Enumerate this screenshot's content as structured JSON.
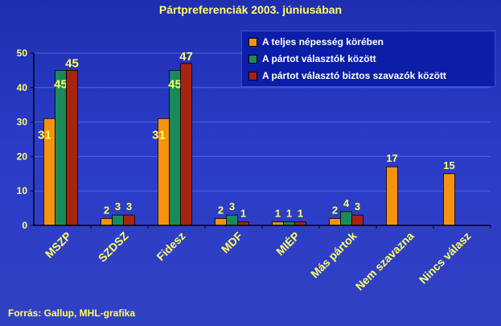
{
  "title": "Pártpreferenciák 2003. júniusában",
  "source": "Forrás: Gallup, MHL-grafika",
  "colors": {
    "background": "#2a3cc8",
    "text": "#ffff66",
    "legend_background": "#0c1ea8",
    "axis": "#000000"
  },
  "chart_data": {
    "type": "bar",
    "title": "Pártpreferenciák 2003. júniusában",
    "xlabel": "",
    "ylabel": "",
    "ylim": [
      0,
      50
    ],
    "yticks": [
      0,
      10,
      20,
      30,
      40,
      50
    ],
    "grid": true,
    "legend_position": "top-right",
    "categories": [
      "MSZP",
      "SZDSZ",
      "Fidesz",
      "MDF",
      "MIÉP",
      "Más pártok",
      "Nem szavazna",
      "Nincs válasz"
    ],
    "series": [
      {
        "name": "A teljes népesség körében",
        "color": "#f5920f",
        "values": [
          31,
          2,
          31,
          2,
          1,
          2,
          17,
          15
        ]
      },
      {
        "name": "A pártot választók között",
        "color": "#1a8a5a",
        "values": [
          45,
          3,
          45,
          3,
          1,
          4,
          null,
          null
        ]
      },
      {
        "name": "A pártot választó biztos szavazók között",
        "color": "#a62410",
        "values": [
          45,
          3,
          47,
          1,
          1,
          3,
          null,
          null
        ]
      }
    ]
  }
}
